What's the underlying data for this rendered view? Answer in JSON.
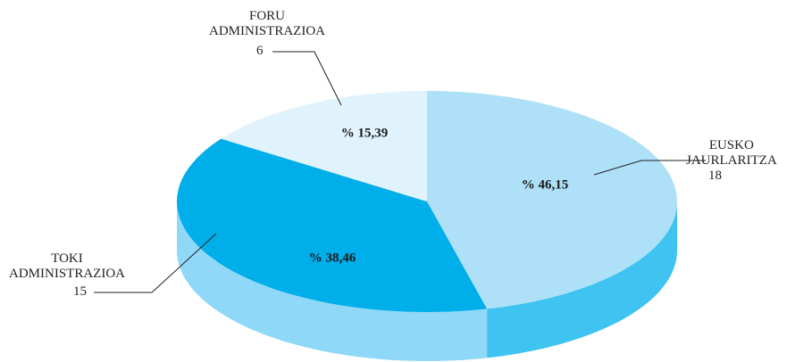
{
  "chart_data": {
    "type": "pie",
    "style": "3d",
    "categories": [
      "EUSKO JAURLARITZA",
      "TOKI ADMINISTRAZIOA",
      "FORU ADMINISTRAZIOA"
    ],
    "values": [
      46.15,
      38.46,
      15.39
    ],
    "value_labels": [
      "% 46,15",
      "% 38,46",
      "% 15,39"
    ],
    "counts": [
      18,
      15,
      6
    ],
    "colors": [
      "#aee0f8",
      "#00aeea",
      "#e0f3fc"
    ],
    "side_colors": [
      "#3fc3f0",
      "#8fd8f7",
      "#c9ebf9"
    ]
  }
}
